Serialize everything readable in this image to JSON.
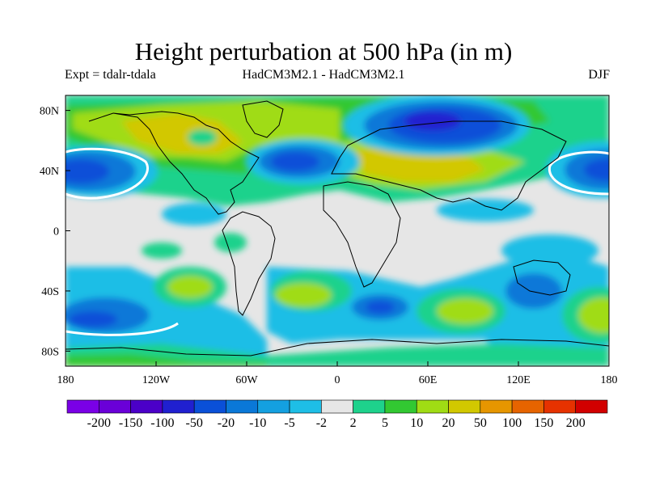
{
  "title": "Height perturbation at 500 hPa (in m)",
  "subtitle_left": "Expt = tdalr-tdala",
  "subtitle_center": "HadCM3M2.1 - HadCM3M2.1",
  "subtitle_right": "DJF",
  "map": {
    "lon_range": [
      -180,
      180
    ],
    "lat_range": [
      -90,
      90
    ],
    "lon_ticks": [
      {
        "value": -180,
        "label": "180"
      },
      {
        "value": -120,
        "label": "120W"
      },
      {
        "value": -60,
        "label": "60W"
      },
      {
        "value": 0,
        "label": "0"
      },
      {
        "value": 60,
        "label": "60E"
      },
      {
        "value": 120,
        "label": "120E"
      },
      {
        "value": 180,
        "label": "180"
      }
    ],
    "lat_ticks": [
      {
        "value": 80,
        "label": "80N"
      },
      {
        "value": 40,
        "label": "40N"
      },
      {
        "value": 0,
        "label": "0"
      },
      {
        "value": -40,
        "label": "40S"
      },
      {
        "value": -80,
        "label": "80S"
      }
    ],
    "features": [
      {
        "lon": -150,
        "lat": 40,
        "level": -4
      },
      {
        "lon": 175,
        "lat": 40,
        "level": -4
      },
      {
        "lon": -40,
        "lat": 45,
        "level": -3
      },
      {
        "lon": 50,
        "lat": 67,
        "level": -4
      },
      {
        "lon": 70,
        "lat": 40,
        "level": 3
      },
      {
        "lon": -95,
        "lat": 55,
        "level": 2
      },
      {
        "lon": -30,
        "lat": 70,
        "level": 1
      },
      {
        "lon": 30,
        "lat": -50,
        "level": -4
      },
      {
        "lon": 140,
        "lat": -30,
        "level": -3
      },
      {
        "lon": -100,
        "lat": -40,
        "level": 2
      },
      {
        "lon": 90,
        "lat": -50,
        "level": 2
      },
      {
        "lon": -160,
        "lat": -55,
        "level": -3
      }
    ]
  },
  "colorbar": {
    "colors": [
      "#7a00e6",
      "#6a00d8",
      "#4b00c8",
      "#2020d0",
      "#0a50d8",
      "#0a78d8",
      "#14a0e0",
      "#1ebee6",
      "#e6e6e6",
      "#1ed28c",
      "#32c832",
      "#a0dc14",
      "#d2c800",
      "#e69600",
      "#e66400",
      "#e63200",
      "#d20000"
    ],
    "labels": [
      "-200",
      "-150",
      "-100",
      "-50",
      "-20",
      "-10",
      "-5",
      "-2",
      "2",
      "5",
      "10",
      "20",
      "50",
      "100",
      "150",
      "200"
    ]
  }
}
